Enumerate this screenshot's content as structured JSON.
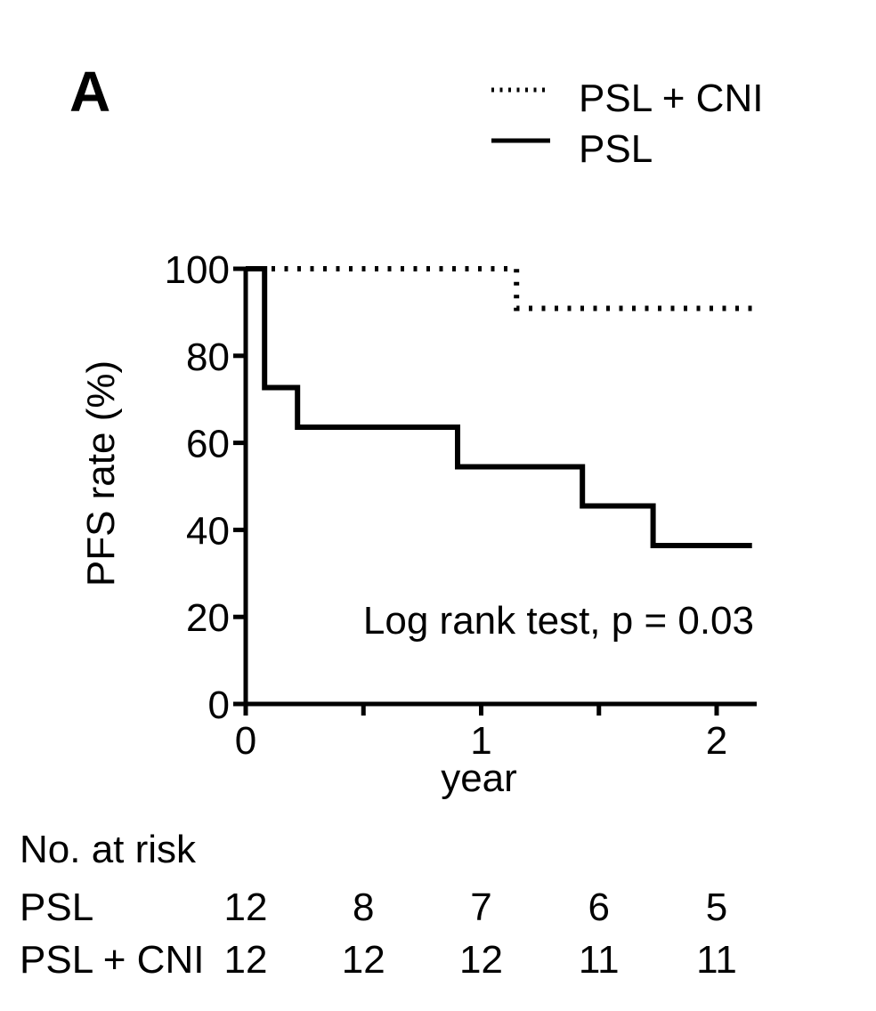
{
  "panel_label": "A",
  "chart_data": {
    "type": "line",
    "subtype": "kaplan-meier step",
    "ylabel": "PFS rate (%)",
    "xlabel": "year",
    "xlim": [
      0,
      2.15
    ],
    "ylim": [
      0,
      100
    ],
    "x_ticks": [
      0,
      0.5,
      1,
      1.5,
      2
    ],
    "x_tick_labels": [
      "0",
      "",
      "1",
      "",
      "2"
    ],
    "y_ticks": [
      0,
      20,
      40,
      60,
      80,
      100
    ],
    "y_tick_labels": [
      "0",
      "20",
      "40",
      "60",
      "80",
      "100"
    ],
    "grid": false,
    "legend_position": "top-right",
    "annotation": "Log rank test, p = 0.03",
    "series": [
      {
        "name": "PSL + CNI",
        "line_style": "dotted",
        "x": [
          0,
          1.15,
          1.15,
          2.15
        ],
        "y": [
          100,
          100,
          90.9,
          90.9
        ]
      },
      {
        "name": "PSL",
        "line_style": "solid",
        "x": [
          0,
          0.08,
          0.08,
          0.08,
          0.08,
          0.22,
          0.22,
          0.9,
          0.9,
          1.43,
          1.43,
          1.73,
          1.73,
          2.15
        ],
        "y": [
          100,
          100,
          81.8,
          81.8,
          72.7,
          72.7,
          63.6,
          63.6,
          54.5,
          54.5,
          45.5,
          45.5,
          36.4,
          36.4
        ]
      }
    ],
    "risk_table": {
      "title": "No. at risk",
      "time_points": [
        0,
        0.5,
        1,
        1.5,
        2
      ],
      "rows": [
        {
          "label": "PSL",
          "values": [
            "12",
            "8",
            "7",
            "6",
            "5"
          ]
        },
        {
          "label": "PSL + CNI",
          "values": [
            "12",
            "12",
            "12",
            "11",
            "11"
          ]
        }
      ]
    }
  }
}
